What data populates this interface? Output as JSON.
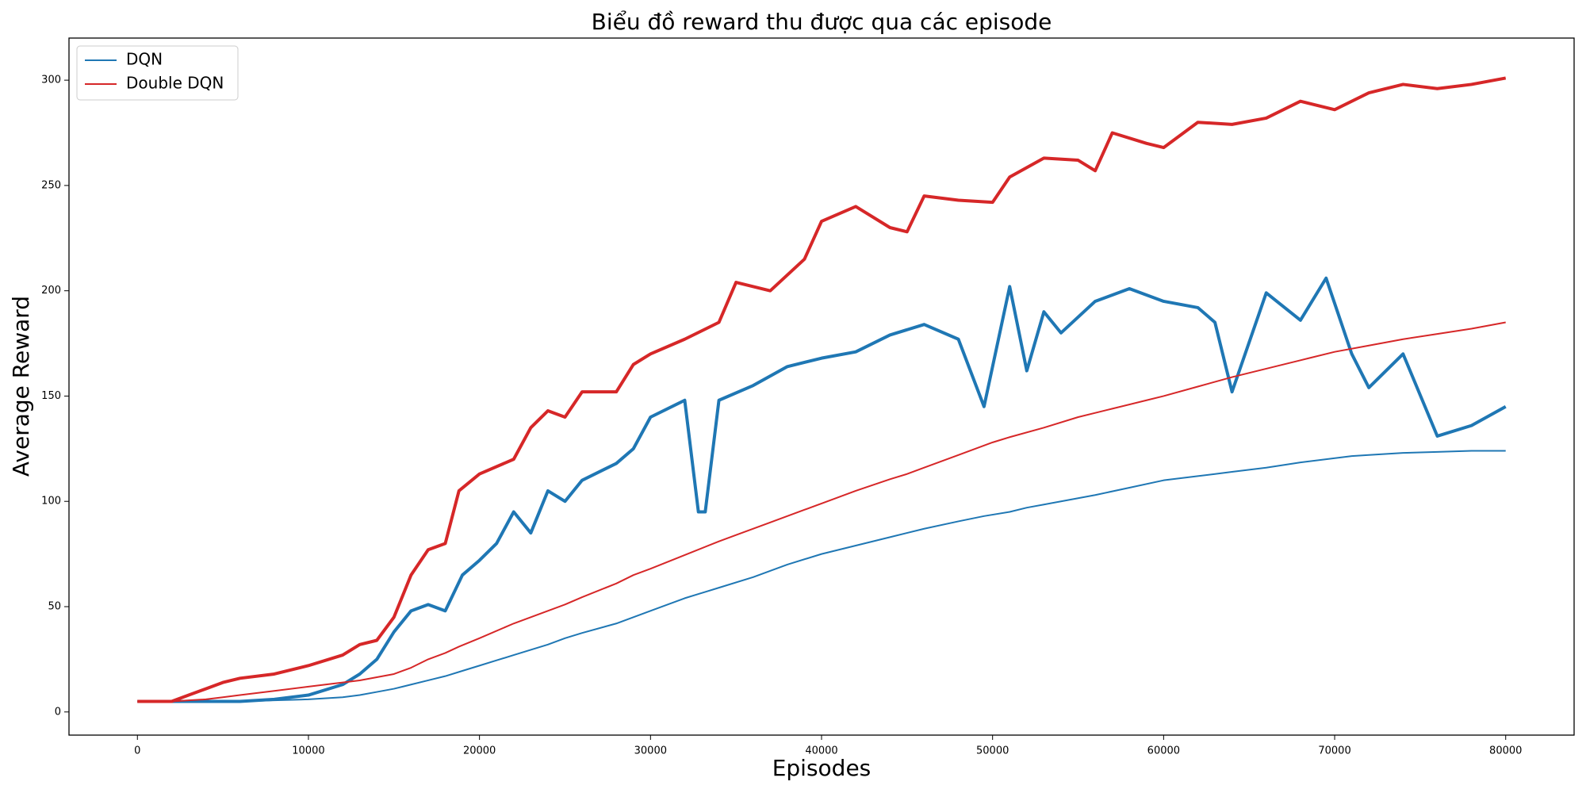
{
  "chart_data": {
    "type": "line",
    "title": "Biểu đồ reward thu được qua các episode",
    "xlabel": "Episodes",
    "ylabel": "Average Reward",
    "xlim": [
      -4000,
      84000
    ],
    "xticks": [
      0,
      10000,
      20000,
      30000,
      40000,
      50000,
      60000,
      70000,
      80000
    ],
    "ylim": [
      -11,
      320
    ],
    "yticks": [
      0,
      50,
      100,
      150,
      200,
      250,
      300
    ],
    "ytick_color": "#ff7f0e",
    "grid": false,
    "legend": "upper left",
    "series": [
      {
        "name": "DQN",
        "color": "#1f77b4",
        "x": [
          0,
          2000,
          4000,
          6000,
          8000,
          10000,
          12000,
          13000,
          14000,
          15000,
          16000,
          17000,
          18000,
          19000,
          20000,
          21000,
          22000,
          23000,
          24000,
          25000,
          26000,
          28000,
          29000,
          30000,
          32000,
          32800,
          33200,
          34000,
          36000,
          38000,
          40000,
          42000,
          44000,
          46000,
          48000,
          49500,
          51000,
          52000,
          53000,
          54000,
          56000,
          58000,
          60000,
          62000,
          63000,
          64000,
          66000,
          68000,
          69500,
          71000,
          72000,
          74000,
          76000,
          78000,
          80000
        ],
        "values": [
          5,
          5,
          5,
          5,
          6,
          8,
          13,
          18,
          25,
          38,
          48,
          51,
          48,
          65,
          72,
          80,
          95,
          85,
          105,
          100,
          110,
          118,
          125,
          140,
          148,
          95,
          95,
          148,
          155,
          164,
          168,
          171,
          179,
          184,
          177,
          145,
          202,
          162,
          190,
          180,
          195,
          201,
          195,
          192,
          185,
          152,
          199,
          186,
          206,
          170,
          154,
          170,
          131,
          136,
          145
        ],
        "running_mean": [
          5,
          5,
          5,
          5,
          5.5,
          6,
          7,
          8,
          9.5,
          11,
          13,
          15,
          17,
          19.5,
          22,
          24.5,
          27,
          29.5,
          32,
          35,
          37.5,
          42,
          45,
          48,
          54,
          56,
          57,
          59,
          64,
          70,
          75,
          79,
          83,
          87,
          90.5,
          93,
          95,
          97,
          98.5,
          100,
          103,
          106.5,
          110,
          112,
          113,
          114,
          116,
          118.5,
          120,
          121.5,
          122,
          123,
          123.5,
          124,
          124
        ]
      },
      {
        "name": "Double DQN",
        "color": "#d62728",
        "x": [
          0,
          2000,
          3000,
          4000,
          5000,
          6000,
          8000,
          10000,
          12000,
          13000,
          14000,
          15000,
          16000,
          17000,
          18000,
          18800,
          20000,
          22000,
          23000,
          24000,
          25000,
          26000,
          28000,
          29000,
          30000,
          32000,
          34000,
          35000,
          37000,
          39000,
          40000,
          42000,
          44000,
          45000,
          46000,
          48000,
          50000,
          51000,
          53000,
          55000,
          56000,
          57000,
          59000,
          60000,
          62000,
          64000,
          66000,
          68000,
          70000,
          72000,
          74000,
          76000,
          78000,
          80000
        ],
        "values": [
          5,
          5,
          8,
          11,
          14,
          16,
          18,
          22,
          27,
          32,
          34,
          45,
          65,
          77,
          80,
          105,
          113,
          120,
          135,
          143,
          140,
          152,
          152,
          165,
          170,
          177,
          185,
          204,
          200,
          215,
          233,
          240,
          230,
          228,
          245,
          243,
          242,
          254,
          263,
          262,
          257,
          275,
          270,
          268,
          280,
          279,
          282,
          290,
          286,
          294,
          298,
          296,
          298,
          301
        ],
        "running_mean": [
          5,
          5,
          5.5,
          6,
          7,
          8,
          10,
          12,
          14,
          15,
          16.5,
          18,
          21,
          25,
          28,
          31,
          35,
          42,
          45,
          48,
          51,
          54.5,
          61,
          65,
          68,
          74.5,
          81,
          84,
          90,
          96,
          99,
          105,
          110.5,
          113,
          116,
          122,
          128,
          130.5,
          135,
          140,
          142,
          144,
          148,
          150,
          154.5,
          159,
          163,
          167,
          171,
          174,
          177,
          179.5,
          182,
          185
        ]
      }
    ]
  }
}
